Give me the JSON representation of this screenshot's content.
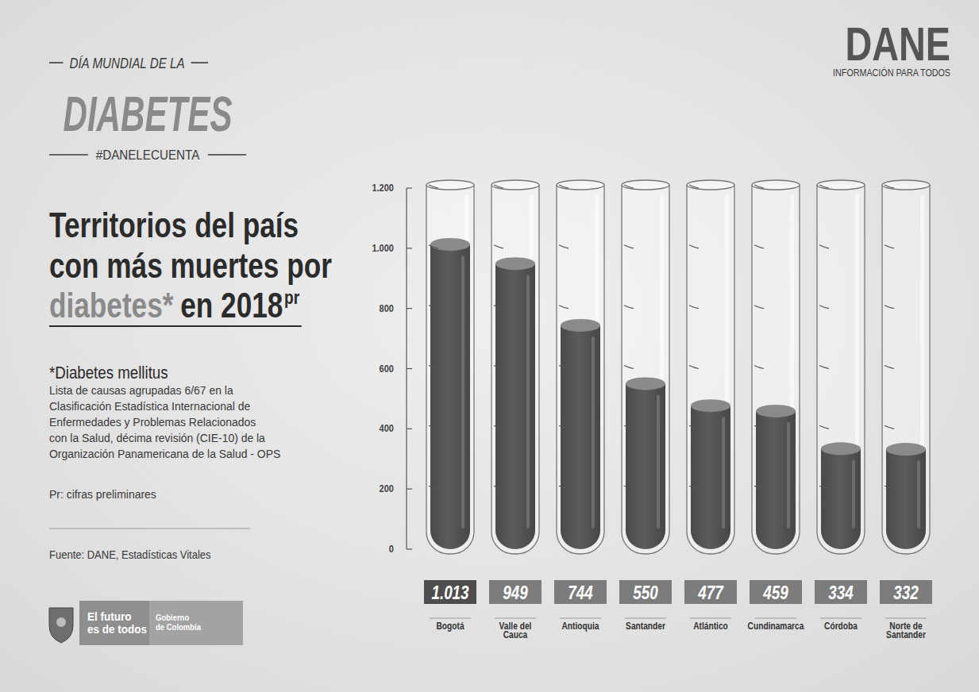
{
  "header": {
    "kicker": "DÍA MUNDIAL DE LA",
    "title": "DIABETES",
    "hashtag": "#DANELECUENTA"
  },
  "logo": {
    "name": "DANE",
    "tagline": "INFORMACIÓN PARA TODOS"
  },
  "headline": {
    "lines": [
      "Territorios del país",
      "con más muertes por"
    ],
    "highlight": "diabetes*",
    "rest": "en 2018",
    "superscript": "pr"
  },
  "notes": {
    "heading": "*Diabetes mellitus",
    "lines": [
      "Lista de causas agrupadas 6/67 en la",
      "Clasificación Estadística Internacional de",
      "Enfermedades y Problemas Relacionados",
      "con la Salud, décima revisión (CIE-10) de la",
      "Organización Panamericana de la Salud - OPS"
    ],
    "preliminary": "Pr: cifras preliminares",
    "source": "Fuente: DANE, Estadísticas Vitales"
  },
  "footer": {
    "slogan": [
      "El futuro",
      "es de todos"
    ],
    "government": [
      "Gobierno",
      "de Colombia"
    ]
  },
  "chart_data": {
    "type": "bar",
    "categories": [
      "Bogotá",
      "Valle del Cauca",
      "Antioquia",
      "Santander",
      "Atlántico",
      "Cundinamarca",
      "Córdoba",
      "Norte de Santander"
    ],
    "values": [
      1013,
      949,
      744,
      550,
      477,
      459,
      334,
      332
    ],
    "value_labels": [
      "1.013",
      "949",
      "744",
      "550",
      "477",
      "459",
      "334",
      "332"
    ],
    "data_labels": true,
    "color": "#5c5c5c",
    "grid": false,
    "ylim": [
      0,
      1200
    ],
    "yticks": [
      0,
      200,
      400,
      600,
      800,
      {
        "value": 1000,
        "label": "1.000"
      },
      {
        "value": 1200,
        "label": "1.200"
      }
    ]
  }
}
